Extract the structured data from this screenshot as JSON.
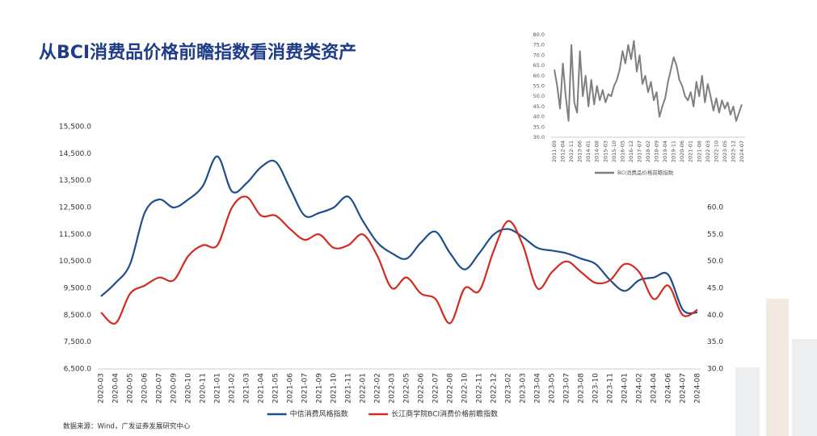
{
  "chart_data": [
    {
      "type": "line",
      "title": "从BCI消费品价格前瞻指数看消费类资产",
      "source": "数据来源：Wind，广发证券发展研究中心",
      "categories": [
        "2020-03",
        "2020-04",
        "2020-05",
        "2020-06",
        "2020-07",
        "2020-09",
        "2020-10",
        "2020-11",
        "2021-01",
        "2021-02",
        "2021-03",
        "2021-04",
        "2021-05",
        "2021-06",
        "2021-07",
        "2021-09",
        "2021-10",
        "2021-11",
        "2022-01",
        "2022-02",
        "2022-03",
        "2022-05",
        "2022-06",
        "2022-07",
        "2022-08",
        "2022-10",
        "2022-11",
        "2022-12",
        "2023-02",
        "2023-03",
        "2023-04",
        "2023-05",
        "2023-07",
        "2023-08",
        "2023-10",
        "2023-11",
        "2024-01",
        "2024-02",
        "2024-04",
        "2024-06",
        "2024-07",
        "2024-08"
      ],
      "series": [
        {
          "name": "中信消费风格指数",
          "color": "#1f4e8c",
          "axis": "y",
          "values": [
            9200,
            9700,
            10400,
            12300,
            12800,
            12500,
            12800,
            13300,
            14400,
            13100,
            13400,
            14000,
            14200,
            13200,
            12200,
            12300,
            12500,
            12900,
            12000,
            11200,
            10800,
            10600,
            11200,
            11600,
            10800,
            10200,
            10800,
            11500,
            11700,
            11400,
            11000,
            10900,
            10800,
            10600,
            10400,
            9800,
            9400,
            9800,
            9900,
            10000,
            8700,
            8600
          ]
        },
        {
          "name": "长江商学院BCI消费价格前瞻指数",
          "color": "#d42a20",
          "axis": "y2",
          "values": [
            40.5,
            38.5,
            44,
            45.5,
            47,
            46.5,
            51,
            53,
            53,
            60,
            62,
            58.5,
            58.5,
            56,
            54,
            55,
            52.5,
            53,
            55,
            51,
            45,
            47,
            44,
            43,
            38.5,
            45,
            44.5,
            52,
            57.5,
            53,
            45,
            48,
            50,
            48,
            46,
            46.5,
            49.5,
            48,
            43,
            45.5,
            40,
            41
          ]
        }
      ],
      "ylim": [
        6500,
        15500
      ],
      "yticks": [
        {
          "value": 6500,
          "label": "6,500.0"
        },
        {
          "value": 7500,
          "label": "7,500.0"
        },
        {
          "value": 8500,
          "label": "8,500.0"
        },
        {
          "value": 9500,
          "label": "9,500.0"
        },
        {
          "value": 10500,
          "label": "10,500.0"
        },
        {
          "value": 11500,
          "label": "11,500.0"
        },
        {
          "value": 12500,
          "label": "12,500.0"
        },
        {
          "value": 13500,
          "label": "13,500.0"
        },
        {
          "value": 14500,
          "label": "14,500.0"
        },
        {
          "value": 15500,
          "label": "15,500.0"
        }
      ],
      "y2lim": [
        30,
        60
      ],
      "y2ticks": [
        {
          "value": 30,
          "label": "30.0"
        },
        {
          "value": 35,
          "label": "35.0"
        },
        {
          "value": 40,
          "label": "40.0"
        },
        {
          "value": 45,
          "label": "45.0"
        },
        {
          "value": 50,
          "label": "50.0"
        },
        {
          "value": 55,
          "label": "55.0"
        },
        {
          "value": 60,
          "label": "60.0"
        }
      ],
      "legend": "bottom"
    },
    {
      "type": "line",
      "categories": [
        "2011-09",
        null,
        null,
        "2012-04",
        null,
        null,
        "2012-11",
        null,
        null,
        "2013-06",
        null,
        null,
        "2014-01",
        null,
        null,
        "2014-08",
        null,
        null,
        "2015-03",
        null,
        null,
        "2015-10",
        null,
        null,
        "2016-05",
        null,
        null,
        "2016-12",
        null,
        null,
        "2017-07",
        null,
        null,
        "2018-02",
        null,
        null,
        "2018-09",
        null,
        null,
        "2019-04",
        null,
        null,
        "2019-11",
        null,
        null,
        "2020-06",
        null,
        null,
        "2021-01",
        null,
        null,
        "2021-08",
        null,
        null,
        "2022-03",
        null,
        null,
        "2022-10",
        null,
        null,
        "2023-05",
        null,
        null,
        "2023-12",
        null,
        null,
        "2024-07"
      ],
      "series": [
        {
          "name": "BCI消费品价格前瞻指数",
          "color": "#7f7f7f",
          "values": [
            63,
            55,
            44,
            66,
            50,
            38,
            75,
            47,
            42,
            72,
            50,
            60,
            45,
            58,
            46,
            55,
            48,
            53,
            47,
            51,
            50,
            55,
            58,
            63,
            72,
            66,
            75,
            68,
            77,
            62,
            70,
            56,
            60,
            52,
            57,
            48,
            52,
            40,
            45,
            49,
            57,
            63,
            69,
            65,
            58,
            55,
            50,
            48,
            52,
            45,
            57,
            50,
            60,
            47,
            56,
            50,
            43,
            49,
            42,
            48,
            44,
            47,
            41,
            45,
            38,
            42,
            46
          ]
        }
      ],
      "ylim": [
        30,
        80
      ],
      "yticks": [
        {
          "value": 30,
          "label": "30.0"
        },
        {
          "value": 35,
          "label": "35.0"
        },
        {
          "value": 40,
          "label": "40.0"
        },
        {
          "value": 45,
          "label": "45.0"
        },
        {
          "value": 50,
          "label": "50.0"
        },
        {
          "value": 55,
          "label": "55.0"
        },
        {
          "value": 60,
          "label": "60.0"
        },
        {
          "value": 65,
          "label": "65.0"
        },
        {
          "value": 70,
          "label": "70.0"
        },
        {
          "value": 75,
          "label": "75.0"
        },
        {
          "value": 80,
          "label": "80.0"
        }
      ],
      "legend": "bottom"
    }
  ]
}
